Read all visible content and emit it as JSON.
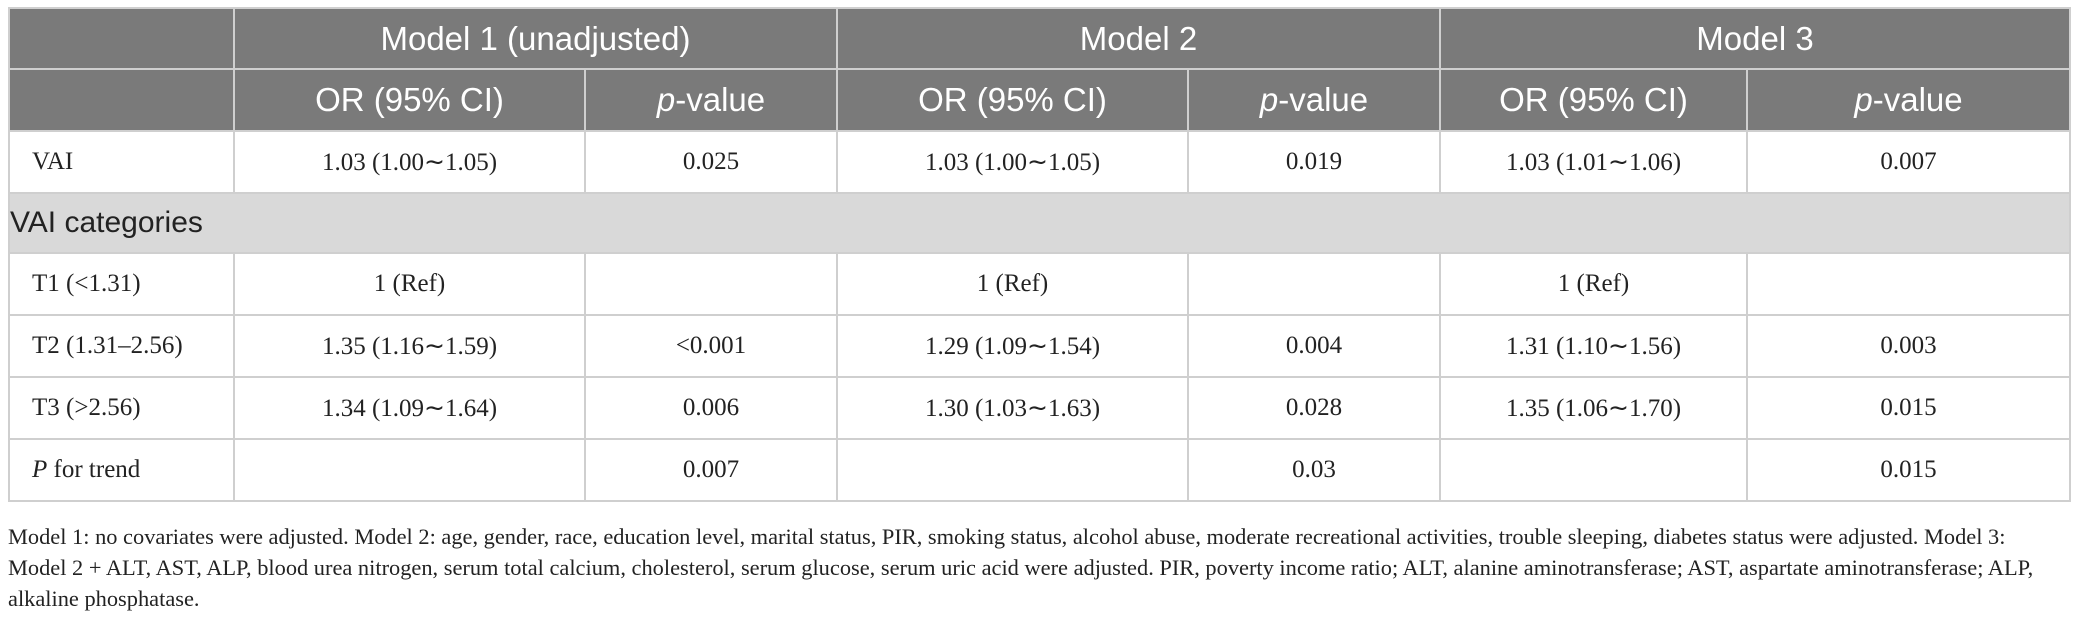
{
  "header": {
    "models": [
      "Model 1 (unadjusted)",
      "Model 2",
      "Model 3"
    ],
    "or_label": "OR (95% CI)",
    "p_label_italic": "p",
    "p_label_rest": "-value"
  },
  "rows": {
    "vai": {
      "label": "VAI",
      "m1_or": "1.03 (1.00∼1.05)",
      "m1_p": "0.025",
      "m2_or": "1.03 (1.00∼1.05)",
      "m2_p": "0.019",
      "m3_or": "1.03 (1.01∼1.06)",
      "m3_p": "0.007"
    },
    "categories_label": "VAI categories",
    "t1": {
      "label": "T1 (<1.31)",
      "m1_or": "1 (Ref)",
      "m1_p": "",
      "m2_or": "1 (Ref)",
      "m2_p": "",
      "m3_or": "1 (Ref)",
      "m3_p": ""
    },
    "t2": {
      "label": "T2 (1.31–2.56)",
      "m1_or": "1.35 (1.16∼1.59)",
      "m1_p": "<0.001",
      "m2_or": "1.29 (1.09∼1.54)",
      "m2_p": "0.004",
      "m3_or": "1.31 (1.10∼1.56)",
      "m3_p": "0.003"
    },
    "t3": {
      "label": "T3 (>2.56)",
      "m1_or": "1.34 (1.09∼1.64)",
      "m1_p": "0.006",
      "m2_or": "1.30 (1.03∼1.63)",
      "m2_p": "0.028",
      "m3_or": "1.35 (1.06∼1.70)",
      "m3_p": "0.015"
    },
    "trend": {
      "label_italic": "P",
      "label_rest": " for trend",
      "m1_or": "",
      "m1_p": "0.007",
      "m2_or": "",
      "m2_p": "0.03",
      "m3_or": "",
      "m3_p": "0.015"
    }
  },
  "footnote": "Model 1: no covariates were adjusted. Model 2: age, gender, race, education level, marital status, PIR, smoking status, alcohol abuse, moderate recreational activities, trouble sleeping, diabetes status were adjusted. Model 3: Model 2 + ALT, AST, ALP, blood urea nitrogen, serum total calcium, cholesterol, serum glucose, serum uric acid were adjusted. PIR, poverty income ratio; ALT, alanine aminotransferase; AST, aspartate aminotransferase; ALP, alkaline phosphatase.",
  "colors": {
    "header_bg": "#7a7a7a",
    "category_bg": "#d9d9d9",
    "border": "#cfcfcf"
  }
}
